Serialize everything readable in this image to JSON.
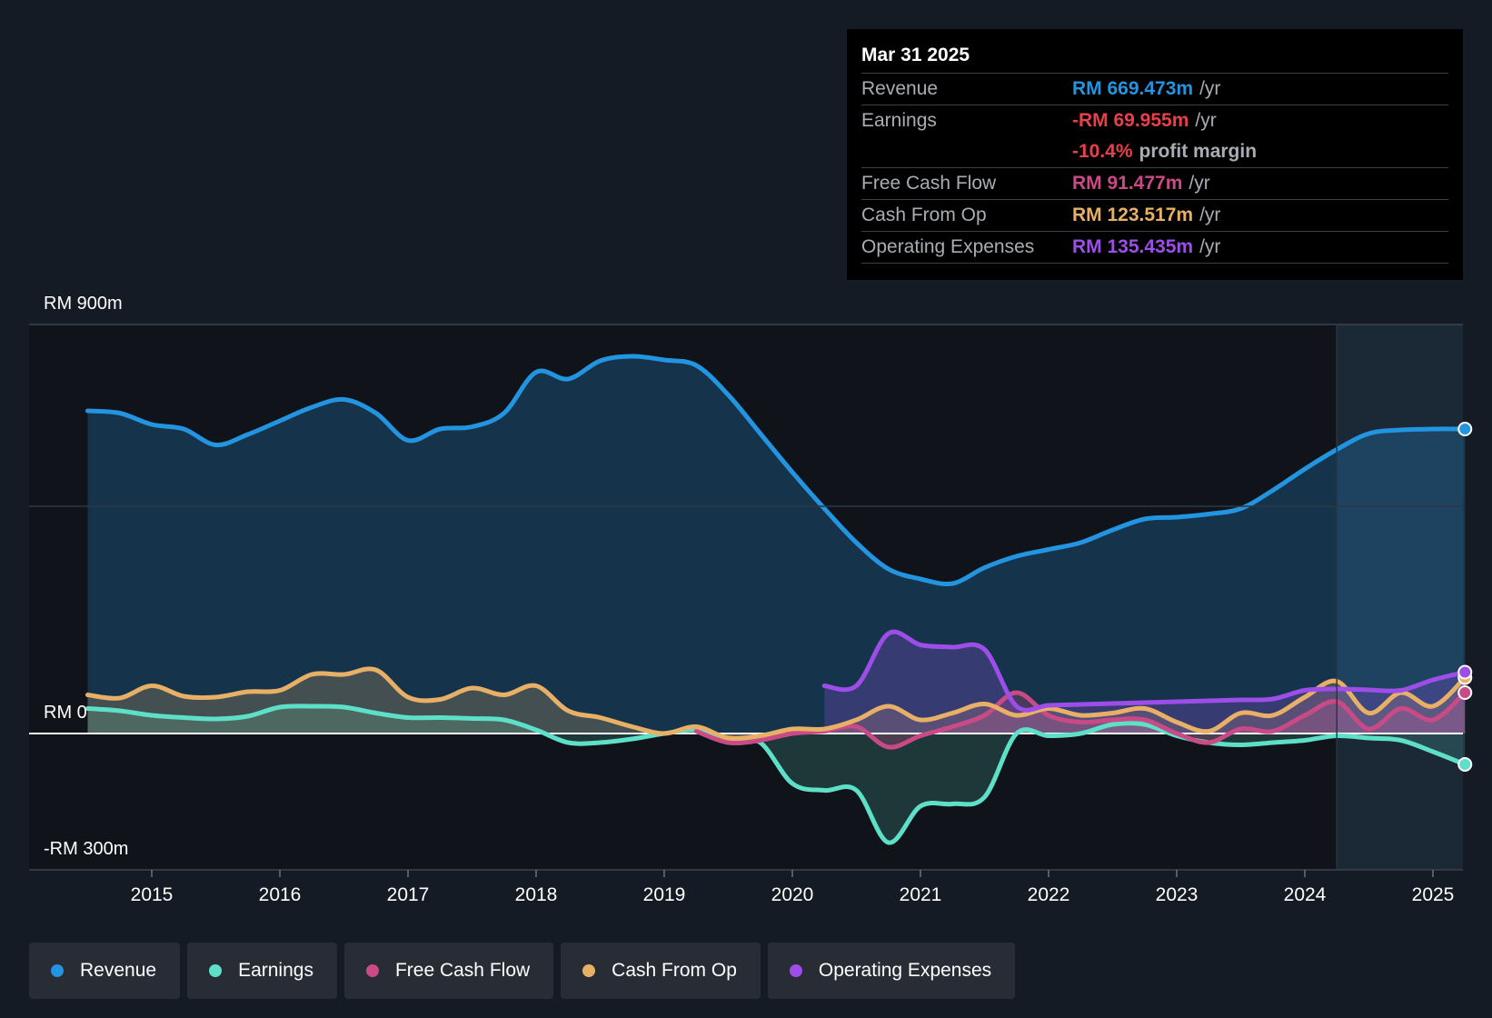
{
  "tooltip": {
    "date": "Mar 31 2025",
    "rows": [
      {
        "label": "Revenue",
        "value": "RM 669.473m",
        "unit": "/yr",
        "color": "#2394e0"
      },
      {
        "label": "Earnings",
        "value": "-RM 69.955m",
        "unit": "/yr",
        "color": "#e8404b"
      },
      {
        "label": "",
        "value": "-10.4%",
        "unit": "profit margin",
        "color": "#e8404b"
      },
      {
        "label": "Free Cash Flow",
        "value": "RM 91.477m",
        "unit": "/yr",
        "color": "#c94a86"
      },
      {
        "label": "Cash From Op",
        "value": "RM 123.517m",
        "unit": "/yr",
        "color": "#e7b066"
      },
      {
        "label": "Operating Expenses",
        "value": "RM 135.435m",
        "unit": "/yr",
        "color": "#9d4ee8"
      }
    ]
  },
  "legend": [
    {
      "label": "Revenue",
      "color": "#2394e0"
    },
    {
      "label": "Earnings",
      "color": "#5ee0c8"
    },
    {
      "label": "Free Cash Flow",
      "color": "#c94a86"
    },
    {
      "label": "Cash From Op",
      "color": "#e7b066"
    },
    {
      "label": "Operating Expenses",
      "color": "#9d4ee8"
    }
  ],
  "chart_data": {
    "type": "area",
    "title": "",
    "xlabel": "",
    "ylabel": "",
    "xlim": [
      2014.0,
      2025.25
    ],
    "ylim": [
      -300,
      900
    ],
    "y_labels": [
      "RM 900m",
      "RM 0",
      "-RM 300m"
    ],
    "x_ticks": [
      "2015",
      "2016",
      "2017",
      "2018",
      "2019",
      "2020",
      "2021",
      "2022",
      "2023",
      "2024",
      "2025"
    ],
    "forecast_start": 2024.25,
    "series": [
      {
        "name": "Revenue",
        "color": "#2394e0",
        "x": [
          2014.5,
          2014.75,
          2015.0,
          2015.25,
          2015.5,
          2015.75,
          2016.0,
          2016.25,
          2016.5,
          2016.75,
          2017.0,
          2017.25,
          2017.5,
          2017.75,
          2018.0,
          2018.25,
          2018.5,
          2018.75,
          2019.0,
          2019.25,
          2019.5,
          2019.75,
          2020.0,
          2020.25,
          2020.5,
          2020.75,
          2021.0,
          2021.25,
          2021.5,
          2021.75,
          2022.0,
          2022.25,
          2022.5,
          2022.75,
          2023.0,
          2023.25,
          2023.5,
          2023.75,
          2024.0,
          2024.25,
          2024.5,
          2024.75,
          2025.0,
          2025.25
        ],
        "values": [
          710,
          705,
          680,
          670,
          635,
          658,
          688,
          718,
          735,
          705,
          645,
          670,
          675,
          705,
          795,
          780,
          820,
          830,
          822,
          810,
          745,
          660,
          575,
          495,
          420,
          362,
          340,
          330,
          365,
          390,
          405,
          420,
          448,
          472,
          476,
          483,
          495,
          535,
          582,
          625,
          660,
          668,
          670,
          670
        ]
      },
      {
        "name": "Earnings",
        "color": "#5ee0c8",
        "x": [
          2014.5,
          2014.75,
          2015.0,
          2015.25,
          2015.5,
          2015.75,
          2016.0,
          2016.25,
          2016.5,
          2016.75,
          2017.0,
          2017.25,
          2017.5,
          2017.75,
          2018.0,
          2018.25,
          2018.5,
          2018.75,
          2019.0,
          2019.25,
          2019.5,
          2019.75,
          2020.0,
          2020.25,
          2020.5,
          2020.75,
          2021.0,
          2021.25,
          2021.5,
          2021.75,
          2022.0,
          2022.25,
          2022.5,
          2022.75,
          2023.0,
          2023.25,
          2023.5,
          2023.75,
          2024.0,
          2024.25,
          2024.5,
          2024.75,
          2025.0,
          2025.25
        ],
        "values": [
          55,
          50,
          40,
          35,
          32,
          38,
          58,
          60,
          58,
          45,
          35,
          35,
          33,
          30,
          8,
          -20,
          -20,
          -12,
          0,
          8,
          -10,
          -20,
          -110,
          -125,
          -125,
          -240,
          -160,
          -155,
          -140,
          0,
          -5,
          0,
          20,
          20,
          -5,
          -20,
          -25,
          -20,
          -15,
          -5,
          -10,
          -15,
          -40,
          -68
        ]
      },
      {
        "name": "Free Cash Flow",
        "color": "#c94a86",
        "x": [
          2019.25,
          2019.5,
          2019.75,
          2020.0,
          2020.25,
          2020.5,
          2020.75,
          2021.0,
          2021.25,
          2021.5,
          2021.75,
          2022.0,
          2022.25,
          2022.5,
          2022.75,
          2023.0,
          2023.25,
          2023.5,
          2023.75,
          2024.0,
          2024.25,
          2024.5,
          2024.75,
          2025.0,
          2025.25
        ],
        "values": [
          5,
          -20,
          -15,
          0,
          5,
          15,
          -30,
          -5,
          15,
          40,
          90,
          40,
          25,
          30,
          30,
          0,
          -20,
          10,
          5,
          40,
          70,
          10,
          55,
          30,
          90
        ]
      },
      {
        "name": "Cash From Op",
        "color": "#e7b066",
        "x": [
          2014.5,
          2014.75,
          2015.0,
          2015.25,
          2015.5,
          2015.75,
          2016.0,
          2016.25,
          2016.5,
          2016.75,
          2017.0,
          2017.25,
          2017.5,
          2017.75,
          2018.0,
          2018.25,
          2018.5,
          2018.75,
          2019.0,
          2019.25,
          2019.5,
          2019.75,
          2020.0,
          2020.25,
          2020.5,
          2020.75,
          2021.0,
          2021.25,
          2021.5,
          2021.75,
          2022.0,
          2022.25,
          2022.5,
          2022.75,
          2023.0,
          2023.25,
          2023.5,
          2023.75,
          2024.0,
          2024.25,
          2024.5,
          2024.75,
          2025.0,
          2025.25
        ],
        "values": [
          85,
          78,
          105,
          82,
          80,
          92,
          95,
          130,
          130,
          140,
          80,
          75,
          100,
          85,
          105,
          50,
          35,
          15,
          0,
          15,
          -10,
          -5,
          10,
          10,
          30,
          60,
          30,
          45,
          65,
          40,
          55,
          40,
          45,
          55,
          25,
          5,
          45,
          40,
          80,
          115,
          45,
          90,
          60,
          123
        ]
      },
      {
        "name": "Operating Expenses",
        "color": "#9d4ee8",
        "x": [
          2020.25,
          2020.5,
          2020.75,
          2021.0,
          2021.25,
          2021.5,
          2021.75,
          2022.0,
          2022.25,
          2022.5,
          2022.75,
          2023.0,
          2023.25,
          2023.5,
          2023.75,
          2024.0,
          2024.25,
          2024.5,
          2024.75,
          2025.0,
          2025.25
        ],
        "values": [
          105,
          105,
          220,
          195,
          190,
          185,
          60,
          62,
          64,
          66,
          68,
          70,
          72,
          74,
          76,
          95,
          98,
          96,
          95,
          118,
          135
        ]
      }
    ]
  }
}
